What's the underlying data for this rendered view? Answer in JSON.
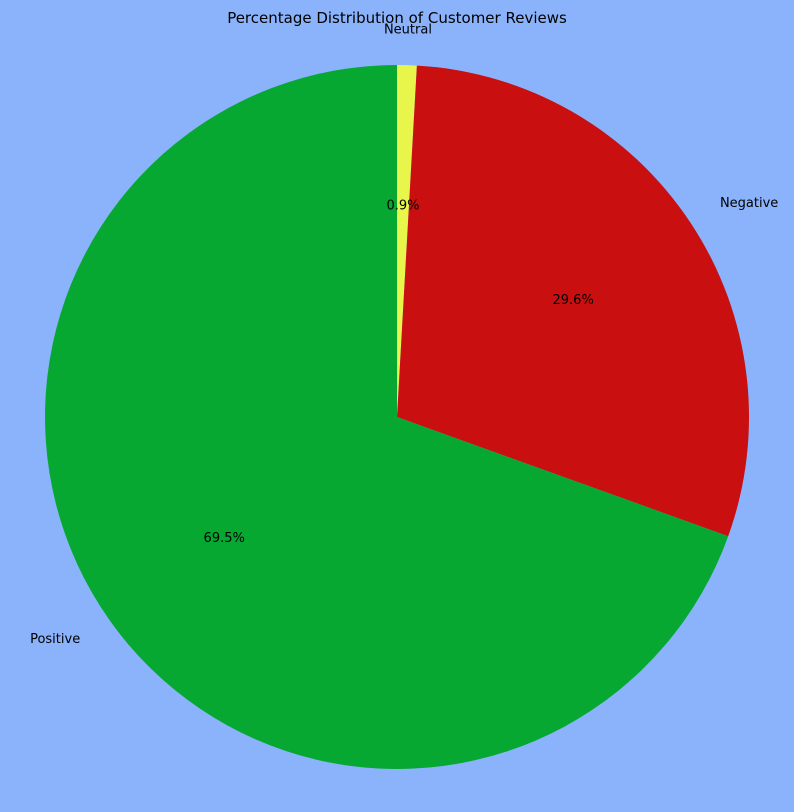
{
  "chart_data": {
    "type": "pie",
    "title": "Percentage Distribution of Customer Reviews",
    "start_angle_deg": 90,
    "direction": "clockwise",
    "slices": [
      {
        "label": "Neutral",
        "value": 0.9,
        "pct_label": "0.9%",
        "color": "#e8f54a"
      },
      {
        "label": "Negative",
        "value": 29.6,
        "pct_label": "29.6%",
        "color": "#c90f0f"
      },
      {
        "label": "Positive",
        "value": 69.5,
        "pct_label": "69.5%",
        "color": "#07a832"
      }
    ]
  },
  "colors": {
    "background": "#8ab3fc"
  }
}
